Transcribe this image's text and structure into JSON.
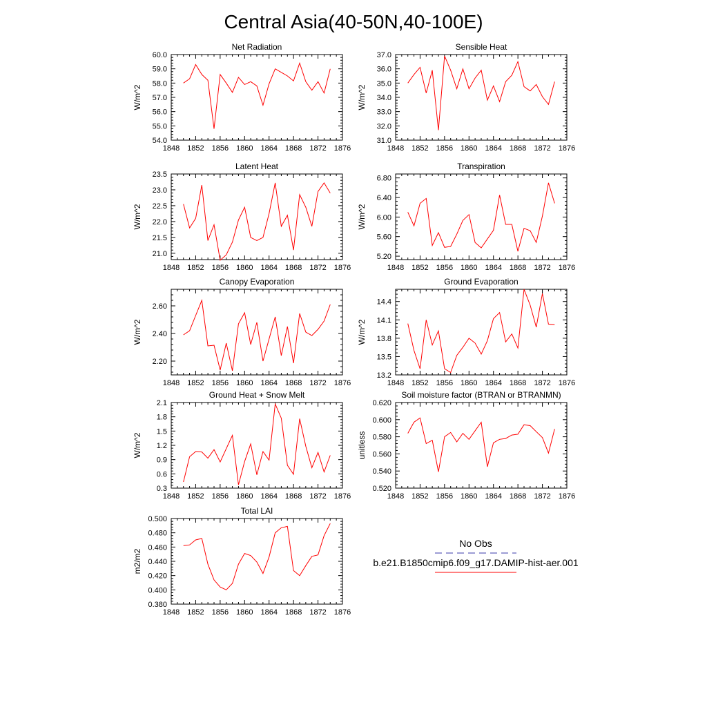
{
  "title": "Central Asia(40-50N,40-100E)",
  "legend": {
    "entries": [
      {
        "label": "No Obs",
        "color": "#3a3aa8",
        "style": "dashed"
      },
      {
        "label": "b.e21.B1850cmip6.f09_g17.DAMIP-hist-aer.001",
        "color": "#ff0000",
        "style": "solid"
      }
    ]
  },
  "chart_data": [
    {
      "type": "line",
      "title": "Net Radiation",
      "ylabel": "W/m^2",
      "xlim": [
        1848,
        1876
      ],
      "ylim": [
        54.0,
        60.0
      ],
      "xticks": [
        1848,
        1852,
        1856,
        1860,
        1864,
        1868,
        1872,
        1876
      ],
      "yticks": [
        54.0,
        55.0,
        56.0,
        57.0,
        58.0,
        59.0,
        60.0
      ],
      "ydecimals": 1,
      "x": [
        1850,
        1851,
        1852,
        1853,
        1854,
        1855,
        1856,
        1857,
        1858,
        1859,
        1860,
        1861,
        1862,
        1863,
        1864,
        1865,
        1866,
        1867,
        1868,
        1869,
        1870,
        1871,
        1872,
        1873,
        1874
      ],
      "series": [
        {
          "color": "#ff0000",
          "values": [
            58.0,
            58.3,
            59.3,
            58.6,
            58.2,
            54.8,
            58.6,
            58.0,
            57.35,
            58.4,
            57.9,
            58.1,
            57.8,
            56.45,
            57.95,
            59.0,
            58.75,
            58.5,
            58.15,
            59.4,
            58.1,
            57.5,
            58.1,
            57.3,
            59.0
          ]
        }
      ]
    },
    {
      "type": "line",
      "title": "Sensible Heat",
      "ylabel": "W/m^2",
      "xlim": [
        1848,
        1876
      ],
      "ylim": [
        31.0,
        37.0
      ],
      "xticks": [
        1848,
        1852,
        1856,
        1860,
        1864,
        1868,
        1872,
        1876
      ],
      "yticks": [
        31.0,
        32.0,
        33.0,
        34.0,
        35.0,
        36.0,
        37.0
      ],
      "ydecimals": 1,
      "x": [
        1850,
        1851,
        1852,
        1853,
        1854,
        1855,
        1856,
        1857,
        1858,
        1859,
        1860,
        1861,
        1862,
        1863,
        1864,
        1865,
        1866,
        1867,
        1868,
        1869,
        1870,
        1871,
        1872,
        1873,
        1874
      ],
      "series": [
        {
          "color": "#ff0000",
          "values": [
            35.0,
            35.6,
            36.1,
            34.3,
            35.9,
            31.7,
            36.9,
            35.9,
            34.6,
            36.0,
            34.6,
            35.35,
            35.9,
            33.8,
            34.8,
            33.7,
            35.1,
            35.55,
            36.5,
            34.75,
            34.45,
            34.9,
            34.05,
            33.5,
            35.1
          ]
        }
      ]
    },
    {
      "type": "line",
      "title": "Latent Heat",
      "ylabel": "W/m^2",
      "xlim": [
        1848,
        1876
      ],
      "ylim": [
        20.8,
        23.5
      ],
      "xticks": [
        1848,
        1852,
        1856,
        1860,
        1864,
        1868,
        1872,
        1876
      ],
      "yticks": [
        21.0,
        21.5,
        22.0,
        22.5,
        23.0,
        23.5
      ],
      "ydecimals": 1,
      "x": [
        1850,
        1851,
        1852,
        1853,
        1854,
        1855,
        1856,
        1857,
        1858,
        1859,
        1860,
        1861,
        1862,
        1863,
        1864,
        1865,
        1866,
        1867,
        1868,
        1869,
        1870,
        1871,
        1872,
        1873,
        1874
      ],
      "series": [
        {
          "color": "#ff0000",
          "values": [
            22.55,
            21.8,
            22.1,
            23.15,
            21.4,
            21.9,
            20.78,
            20.95,
            21.35,
            22.05,
            22.45,
            21.5,
            21.4,
            21.5,
            22.25,
            23.22,
            21.85,
            22.2,
            21.1,
            22.85,
            22.45,
            21.85,
            22.95,
            23.22,
            22.9
          ]
        }
      ]
    },
    {
      "type": "line",
      "title": "Transpiration",
      "ylabel": "W/m^2",
      "xlim": [
        1848,
        1876
      ],
      "ylim": [
        5.13,
        6.88
      ],
      "xticks": [
        1848,
        1852,
        1856,
        1860,
        1864,
        1868,
        1872,
        1876
      ],
      "yticks": [
        5.2,
        5.6,
        6.0,
        6.4,
        6.8
      ],
      "ydecimals": 2,
      "x": [
        1850,
        1851,
        1852,
        1853,
        1854,
        1855,
        1856,
        1857,
        1858,
        1859,
        1860,
        1861,
        1862,
        1863,
        1864,
        1865,
        1866,
        1867,
        1868,
        1869,
        1870,
        1871,
        1872,
        1873,
        1874
      ],
      "series": [
        {
          "color": "#ff0000",
          "values": [
            6.1,
            5.82,
            6.28,
            6.38,
            5.42,
            5.68,
            5.38,
            5.4,
            5.65,
            5.93,
            6.05,
            5.48,
            5.37,
            5.55,
            5.73,
            6.45,
            5.85,
            5.85,
            5.3,
            5.77,
            5.72,
            5.48,
            6.02,
            6.7,
            6.28
          ]
        }
      ]
    },
    {
      "type": "line",
      "title": "Canopy Evaporation",
      "ylabel": "W/m^2",
      "xlim": [
        1848,
        1876
      ],
      "ylim": [
        2.1,
        2.72
      ],
      "xticks": [
        1848,
        1852,
        1856,
        1860,
        1864,
        1868,
        1872,
        1876
      ],
      "yticks": [
        2.2,
        2.4,
        2.6
      ],
      "ydecimals": 2,
      "x": [
        1850,
        1851,
        1852,
        1853,
        1854,
        1855,
        1856,
        1857,
        1858,
        1859,
        1860,
        1861,
        1862,
        1863,
        1864,
        1865,
        1866,
        1867,
        1868,
        1869,
        1870,
        1871,
        1872,
        1873,
        1874
      ],
      "series": [
        {
          "color": "#ff0000",
          "values": [
            2.39,
            2.42,
            2.53,
            2.64,
            2.31,
            2.315,
            2.135,
            2.33,
            2.13,
            2.47,
            2.55,
            2.32,
            2.48,
            2.2,
            2.36,
            2.52,
            2.24,
            2.45,
            2.185,
            2.545,
            2.41,
            2.385,
            2.43,
            2.49,
            2.61
          ]
        }
      ]
    },
    {
      "type": "line",
      "title": "Ground Evaporation",
      "ylabel": "W/m^2",
      "xlim": [
        1848,
        1876
      ],
      "ylim": [
        13.2,
        14.6
      ],
      "xticks": [
        1848,
        1852,
        1856,
        1860,
        1864,
        1868,
        1872,
        1876
      ],
      "yticks": [
        13.2,
        13.5,
        13.8,
        14.1,
        14.4
      ],
      "ydecimals": 1,
      "x": [
        1850,
        1851,
        1852,
        1853,
        1854,
        1855,
        1856,
        1857,
        1858,
        1859,
        1860,
        1861,
        1862,
        1863,
        1864,
        1865,
        1866,
        1867,
        1868,
        1869,
        1870,
        1871,
        1872,
        1873,
        1874
      ],
      "series": [
        {
          "color": "#ff0000",
          "values": [
            14.04,
            13.6,
            13.3,
            14.1,
            13.69,
            13.92,
            13.3,
            13.24,
            13.52,
            13.65,
            13.8,
            13.72,
            13.54,
            13.76,
            14.12,
            14.22,
            13.74,
            13.87,
            13.64,
            14.6,
            14.34,
            13.98,
            14.53,
            14.03,
            14.02
          ]
        }
      ]
    },
    {
      "type": "line",
      "title": "Ground Heat + Snow Melt",
      "ylabel": "W/m^2",
      "xlim": [
        1848,
        1876
      ],
      "ylim": [
        0.3,
        2.1
      ],
      "xticks": [
        1848,
        1852,
        1856,
        1860,
        1864,
        1868,
        1872,
        1876
      ],
      "yticks": [
        0.3,
        0.6,
        0.9,
        1.2,
        1.5,
        1.8,
        2.1
      ],
      "ydecimals": 1,
      "x": [
        1850,
        1851,
        1852,
        1853,
        1854,
        1855,
        1856,
        1857,
        1858,
        1859,
        1860,
        1861,
        1862,
        1863,
        1864,
        1865,
        1866,
        1867,
        1868,
        1869,
        1870,
        1871,
        1872,
        1873,
        1874
      ],
      "series": [
        {
          "color": "#ff0000",
          "values": [
            0.43,
            0.96,
            1.07,
            1.06,
            0.93,
            1.11,
            0.85,
            1.13,
            1.41,
            0.37,
            0.86,
            1.23,
            0.58,
            1.07,
            0.89,
            2.07,
            1.77,
            0.78,
            0.59,
            1.76,
            1.18,
            0.73,
            1.05,
            0.64,
            0.99
          ]
        }
      ]
    },
    {
      "type": "line",
      "title": "Soil moisture factor (BTRAN or BTRANMN)",
      "ylabel": "unitless",
      "xlim": [
        1848,
        1876
      ],
      "ylim": [
        0.52,
        0.62
      ],
      "xticks": [
        1848,
        1852,
        1856,
        1860,
        1864,
        1868,
        1872,
        1876
      ],
      "yticks": [
        0.52,
        0.54,
        0.56,
        0.58,
        0.6,
        0.62
      ],
      "ydecimals": 3,
      "x": [
        1850,
        1851,
        1852,
        1853,
        1854,
        1855,
        1856,
        1857,
        1858,
        1859,
        1860,
        1861,
        1862,
        1863,
        1864,
        1865,
        1866,
        1867,
        1868,
        1869,
        1870,
        1871,
        1872,
        1873,
        1874
      ],
      "series": [
        {
          "color": "#ff0000",
          "values": [
            0.584,
            0.597,
            0.602,
            0.572,
            0.576,
            0.539,
            0.58,
            0.585,
            0.574,
            0.584,
            0.577,
            0.587,
            0.597,
            0.545,
            0.573,
            0.577,
            0.578,
            0.582,
            0.583,
            0.594,
            0.593,
            0.586,
            0.579,
            0.561,
            0.589
          ]
        }
      ]
    },
    {
      "type": "line",
      "title": "Total LAI",
      "ylabel": "m2/m2",
      "xlim": [
        1848,
        1876
      ],
      "ylim": [
        0.38,
        0.5
      ],
      "xticks": [
        1848,
        1852,
        1856,
        1860,
        1864,
        1868,
        1872,
        1876
      ],
      "yticks": [
        0.38,
        0.4,
        0.42,
        0.44,
        0.46,
        0.48,
        0.5
      ],
      "ydecimals": 3,
      "x": [
        1850,
        1851,
        1852,
        1853,
        1854,
        1855,
        1856,
        1857,
        1858,
        1859,
        1860,
        1861,
        1862,
        1863,
        1864,
        1865,
        1866,
        1867,
        1868,
        1869,
        1870,
        1871,
        1872,
        1873,
        1874
      ],
      "series": [
        {
          "color": "#ff0000",
          "values": [
            0.462,
            0.463,
            0.47,
            0.472,
            0.436,
            0.414,
            0.404,
            0.4,
            0.409,
            0.436,
            0.451,
            0.448,
            0.439,
            0.423,
            0.446,
            0.48,
            0.487,
            0.489,
            0.427,
            0.42,
            0.434,
            0.447,
            0.449,
            0.476,
            0.493
          ]
        }
      ]
    }
  ]
}
